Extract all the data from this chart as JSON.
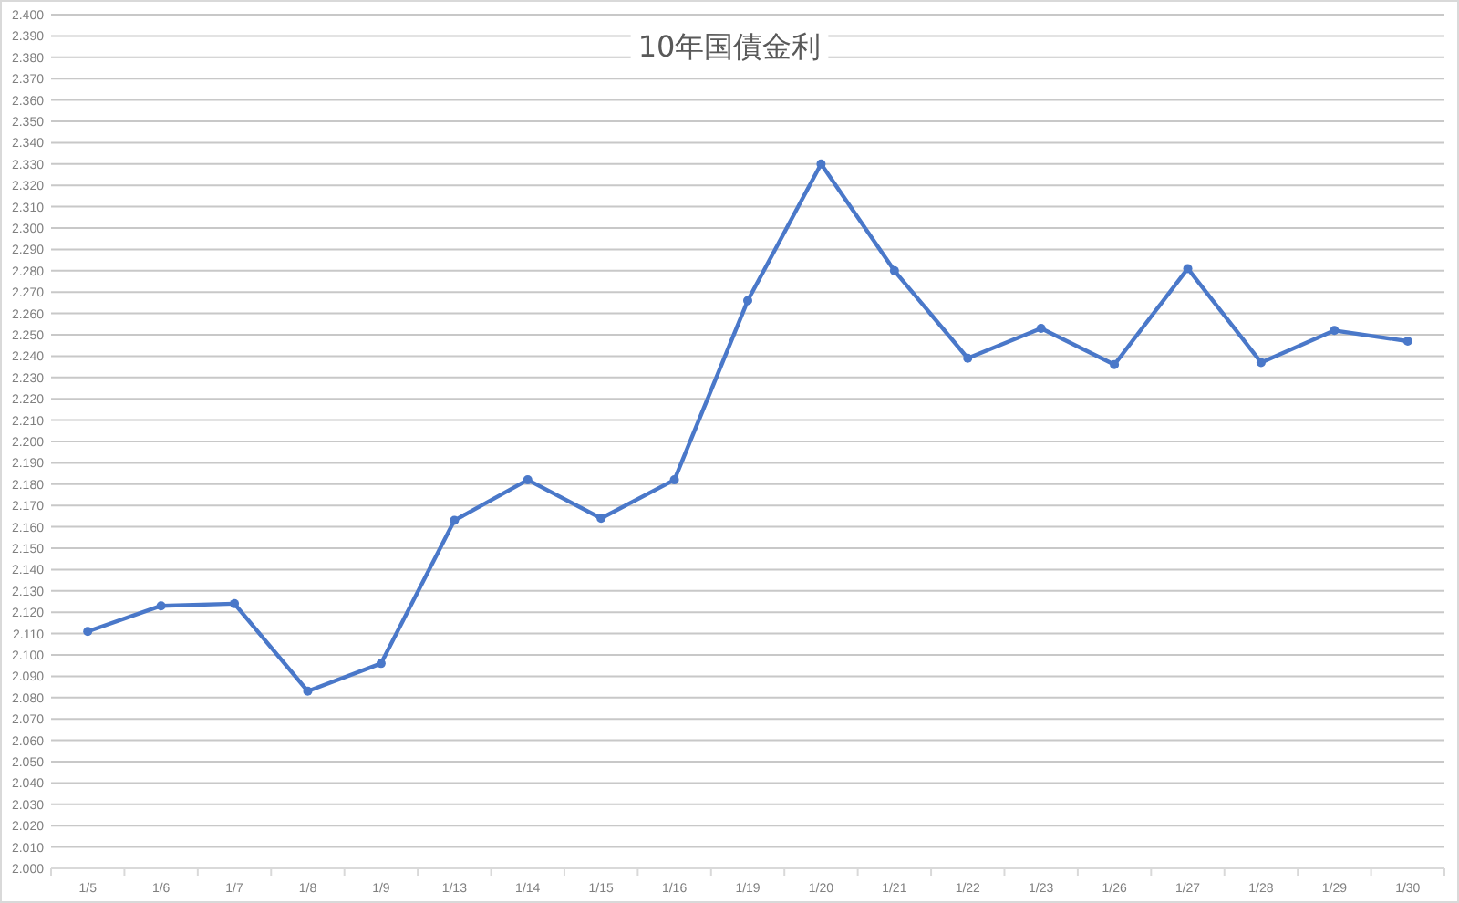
{
  "chart_data": {
    "type": "line",
    "title": "10年国債金利",
    "categories": [
      "1/5",
      "1/6",
      "1/7",
      "1/8",
      "1/9",
      "1/13",
      "1/14",
      "1/15",
      "1/16",
      "1/19",
      "1/20",
      "1/21",
      "1/22",
      "1/23",
      "1/26",
      "1/27",
      "1/28",
      "1/29",
      "1/30"
    ],
    "series": [
      {
        "color": "#4a78c9",
        "values": [
          2.111,
          2.123,
          2.124,
          2.083,
          2.096,
          2.163,
          2.182,
          2.164,
          2.182,
          2.266,
          2.33,
          2.28,
          2.239,
          2.253,
          2.236,
          2.281,
          2.237,
          2.252,
          2.247
        ]
      }
    ],
    "ylim": [
      2.0,
      2.4
    ],
    "yticks": [
      {
        "value": 2.0,
        "label": "2.000"
      },
      {
        "value": 2.01,
        "label": "2.010"
      },
      {
        "value": 2.02,
        "label": "2.020"
      },
      {
        "value": 2.03,
        "label": "2.030"
      },
      {
        "value": 2.04,
        "label": "2.040"
      },
      {
        "value": 2.05,
        "label": "2.050"
      },
      {
        "value": 2.06,
        "label": "2.060"
      },
      {
        "value": 2.07,
        "label": "2.070"
      },
      {
        "value": 2.08,
        "label": "2.080"
      },
      {
        "value": 2.09,
        "label": "2.090"
      },
      {
        "value": 2.1,
        "label": "2.100"
      },
      {
        "value": 2.11,
        "label": "2.110"
      },
      {
        "value": 2.12,
        "label": "2.120"
      },
      {
        "value": 2.13,
        "label": "2.130"
      },
      {
        "value": 2.14,
        "label": "2.140"
      },
      {
        "value": 2.15,
        "label": "2.150"
      },
      {
        "value": 2.16,
        "label": "2.160"
      },
      {
        "value": 2.17,
        "label": "2.170"
      },
      {
        "value": 2.18,
        "label": "2.180"
      },
      {
        "value": 2.19,
        "label": "2.190"
      },
      {
        "value": 2.2,
        "label": "2.200"
      },
      {
        "value": 2.21,
        "label": "2.210"
      },
      {
        "value": 2.22,
        "label": "2.220"
      },
      {
        "value": 2.23,
        "label": "2.230"
      },
      {
        "value": 2.24,
        "label": "2.240"
      },
      {
        "value": 2.25,
        "label": "2.250"
      },
      {
        "value": 2.26,
        "label": "2.260"
      },
      {
        "value": 2.27,
        "label": "2.270"
      },
      {
        "value": 2.28,
        "label": "2.280"
      },
      {
        "value": 2.29,
        "label": "2.290"
      },
      {
        "value": 2.3,
        "label": "2.300"
      },
      {
        "value": 2.31,
        "label": "2.310"
      },
      {
        "value": 2.32,
        "label": "2.320"
      },
      {
        "value": 2.33,
        "label": "2.330"
      },
      {
        "value": 2.34,
        "label": "2.340"
      },
      {
        "value": 2.35,
        "label": "2.350"
      },
      {
        "value": 2.36,
        "label": "2.360"
      },
      {
        "value": 2.37,
        "label": "2.370"
      },
      {
        "value": 2.38,
        "label": "2.380"
      },
      {
        "value": 2.39,
        "label": "2.390"
      },
      {
        "value": 2.4,
        "label": "2.400"
      }
    ],
    "grid": "y",
    "marker": "circle",
    "line_style": "solid"
  }
}
